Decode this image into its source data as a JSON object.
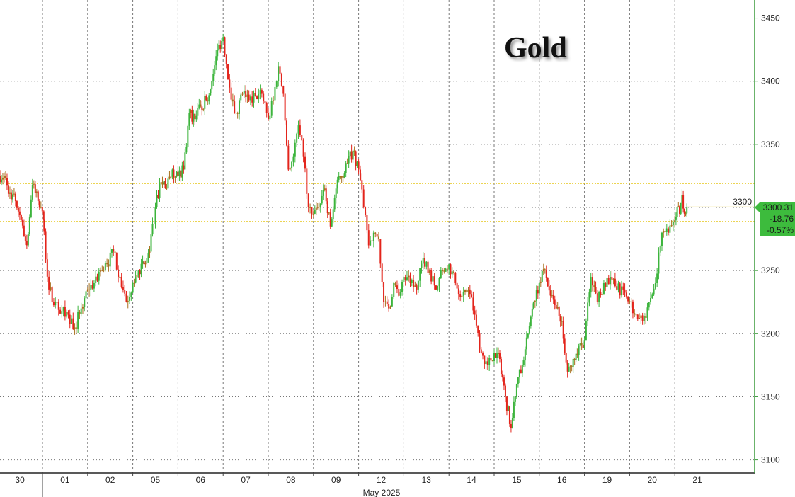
{
  "chart_data": {
    "type": "candlestick",
    "title": "Gold",
    "xlabel": "May 2025",
    "ylabel": "",
    "ylim": [
      3100,
      3450
    ],
    "yticks": [
      3100,
      3150,
      3200,
      3250,
      3300,
      3350,
      3400,
      3450
    ],
    "grid": true,
    "colors": {
      "up": "#3cb43c",
      "down": "#e3241b",
      "mixed": "#a8701e",
      "axis": "#3a9a3a",
      "reference": "#e6c619",
      "last": "#3dbb3d"
    },
    "last": {
      "price": "3300.31",
      "change": "-18.76",
      "pct": "-0.57%",
      "value": 3300.31
    },
    "reference_lines": [
      3319.07,
      3288.8
    ],
    "days": [
      {
        "label": "30",
        "closes": [
          3325,
          3312,
          3305,
          3290,
          3270,
          3318,
          3305,
          3290
        ]
      },
      {
        "label": "01",
        "closes": [
          3235,
          3225,
          3218,
          3215,
          3205,
          3220,
          3235
        ]
      },
      {
        "label": "02",
        "closes": [
          3240,
          3250,
          3255,
          3265,
          3245,
          3225,
          3240
        ]
      },
      {
        "label": "05",
        "closes": [
          3250,
          3255,
          3265,
          3300,
          3320,
          3315,
          3330,
          3325
        ]
      },
      {
        "label": "06",
        "closes": [
          3330,
          3375,
          3370,
          3380,
          3385,
          3400,
          3425,
          3435
        ]
      },
      {
        "label": "07",
        "closes": [
          3395,
          3375,
          3390,
          3385,
          3388,
          3390,
          3370
        ]
      },
      {
        "label": "08",
        "closes": [
          3385,
          3412,
          3390,
          3330,
          3340,
          3365,
          3340,
          3300,
          3295
        ]
      },
      {
        "label": "09",
        "closes": [
          3300,
          3315,
          3285,
          3315,
          3325,
          3335,
          3345,
          3330
        ]
      },
      {
        "label": "12",
        "closes": [
          3300,
          3270,
          3280,
          3275,
          3225,
          3220,
          3240,
          3230,
          3245
        ]
      },
      {
        "label": "13",
        "closes": [
          3240,
          3235,
          3260,
          3250,
          3235,
          3250,
          3255
        ]
      },
      {
        "label": "14",
        "closes": [
          3240,
          3230,
          3235,
          3215,
          3185,
          3175,
          3185
        ]
      },
      {
        "label": "15",
        "closes": [
          3180,
          3150,
          3125,
          3160,
          3175,
          3200,
          3225,
          3240
        ]
      },
      {
        "label": "16",
        "closes": [
          3250,
          3230,
          3220,
          3210,
          3170,
          3180,
          3190,
          3195
        ]
      },
      {
        "label": "19",
        "closes": [
          3245,
          3225,
          3240,
          3245,
          3235,
          3235,
          3225
        ]
      },
      {
        "label": "20",
        "closes": [
          3215,
          3210,
          3225,
          3240,
          3280,
          3280,
          3290
        ]
      },
      {
        "label": "21",
        "closes": [
          3300,
          3295,
          3310,
          3295,
          3300.31
        ]
      }
    ]
  }
}
